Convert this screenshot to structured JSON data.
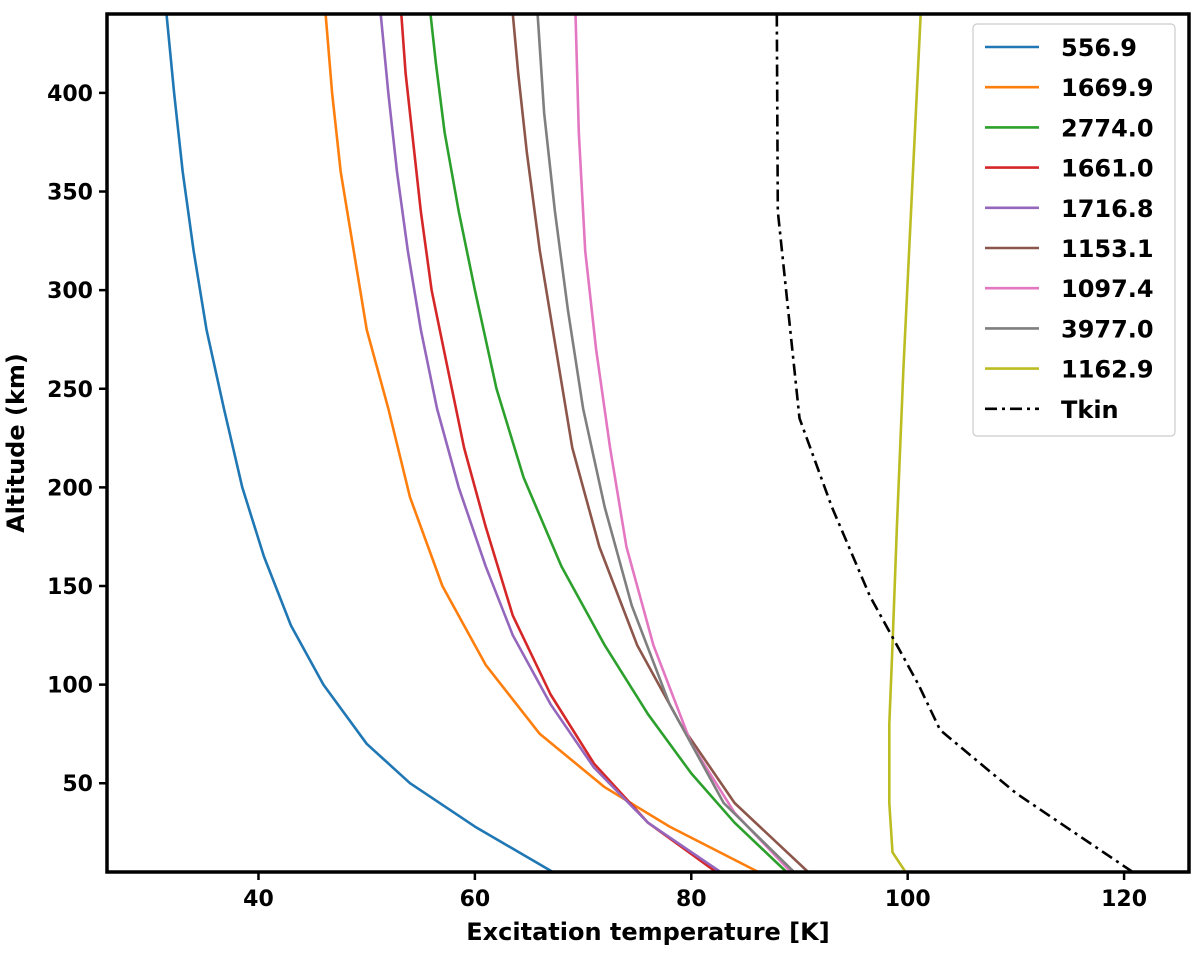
{
  "chart_data": {
    "type": "line",
    "title": "",
    "xlabel": "Excitation temperature [K]",
    "ylabel": "Altitude (km)",
    "xlim": [
      26,
      126
    ],
    "ylim": [
      5,
      440
    ],
    "xticks": [
      40,
      60,
      80,
      100,
      120
    ],
    "yticks": [
      50,
      100,
      150,
      200,
      250,
      300,
      350,
      400
    ],
    "grid": false,
    "legend_position": "top-right",
    "series": [
      {
        "name": "556.9",
        "color": "#1f77b4",
        "dash": "solid",
        "points": [
          [
            67.2,
            5
          ],
          [
            60,
            28
          ],
          [
            54,
            50
          ],
          [
            50,
            70
          ],
          [
            46,
            100
          ],
          [
            43,
            130
          ],
          [
            40.5,
            165
          ],
          [
            38.5,
            200
          ],
          [
            36.8,
            240
          ],
          [
            35.2,
            280
          ],
          [
            34,
            320
          ],
          [
            33,
            360
          ],
          [
            32.2,
            400
          ],
          [
            31.5,
            440
          ]
        ]
      },
      {
        "name": "1669.9",
        "color": "#ff7f0e",
        "dash": "solid",
        "points": [
          [
            86.2,
            5
          ],
          [
            78,
            28
          ],
          [
            72,
            48
          ],
          [
            66,
            75
          ],
          [
            61,
            110
          ],
          [
            57,
            150
          ],
          [
            54,
            195
          ],
          [
            52,
            240
          ],
          [
            50,
            280
          ],
          [
            48.8,
            320
          ],
          [
            47.6,
            360
          ],
          [
            46.8,
            400
          ],
          [
            46.2,
            440
          ]
        ]
      },
      {
        "name": "2774.0",
        "color": "#2ca02c",
        "dash": "solid",
        "points": [
          [
            88.8,
            5
          ],
          [
            84,
            30
          ],
          [
            80,
            55
          ],
          [
            76,
            85
          ],
          [
            72,
            120
          ],
          [
            68,
            160
          ],
          [
            64.5,
            205
          ],
          [
            62,
            250
          ],
          [
            60,
            300
          ],
          [
            58.5,
            340
          ],
          [
            57.2,
            380
          ],
          [
            56.4,
            415
          ],
          [
            55.9,
            440
          ]
        ]
      },
      {
        "name": "1661.0",
        "color": "#d62728",
        "dash": "solid",
        "points": [
          [
            82.3,
            5
          ],
          [
            76,
            30
          ],
          [
            71,
            60
          ],
          [
            67,
            95
          ],
          [
            63.5,
            135
          ],
          [
            61,
            180
          ],
          [
            59,
            220
          ],
          [
            57.5,
            260
          ],
          [
            56,
            300
          ],
          [
            55,
            340
          ],
          [
            54.2,
            380
          ],
          [
            53.6,
            410
          ],
          [
            53.2,
            440
          ]
        ]
      },
      {
        "name": "1716.8",
        "color": "#9467bd",
        "dash": "solid",
        "points": [
          [
            82.7,
            5
          ],
          [
            76,
            30
          ],
          [
            71,
            58
          ],
          [
            67,
            90
          ],
          [
            63.5,
            125
          ],
          [
            61,
            160
          ],
          [
            58.5,
            200
          ],
          [
            56.5,
            240
          ],
          [
            55,
            280
          ],
          [
            53.8,
            320
          ],
          [
            52.8,
            360
          ],
          [
            52,
            400
          ],
          [
            51.3,
            440
          ]
        ]
      },
      {
        "name": "1153.1",
        "color": "#8c564b",
        "dash": "solid",
        "points": [
          [
            90.8,
            5
          ],
          [
            84,
            40
          ],
          [
            79,
            80
          ],
          [
            75,
            120
          ],
          [
            71.5,
            170
          ],
          [
            69,
            220
          ],
          [
            67.5,
            270
          ],
          [
            66,
            320
          ],
          [
            64.8,
            370
          ],
          [
            64,
            410
          ],
          [
            63.5,
            440
          ]
        ]
      },
      {
        "name": "1097.4",
        "color": "#e377c2",
        "dash": "solid",
        "points": [
          [
            89.2,
            5
          ],
          [
            84,
            35
          ],
          [
            80,
            70
          ],
          [
            76.5,
            120
          ],
          [
            74,
            170
          ],
          [
            72.5,
            220
          ],
          [
            71.2,
            270
          ],
          [
            70.2,
            320
          ],
          [
            69.6,
            380
          ],
          [
            69.3,
            440
          ]
        ]
      },
      {
        "name": "3977.0",
        "color": "#7f7f7f",
        "dash": "solid",
        "points": [
          [
            89.5,
            5
          ],
          [
            83,
            40
          ],
          [
            78,
            90
          ],
          [
            74.5,
            140
          ],
          [
            72,
            190
          ],
          [
            70,
            240
          ],
          [
            68.6,
            290
          ],
          [
            67.4,
            340
          ],
          [
            66.4,
            390
          ],
          [
            65.8,
            440
          ]
        ]
      },
      {
        "name": "1162.9",
        "color": "#bcbd22",
        "dash": "solid",
        "points": [
          [
            99.8,
            5
          ],
          [
            98.6,
            15
          ],
          [
            98.3,
            40
          ],
          [
            98.3,
            80
          ],
          [
            98.6,
            120
          ],
          [
            99,
            180
          ],
          [
            99.6,
            260
          ],
          [
            100.4,
            350
          ],
          [
            101.2,
            440
          ]
        ]
      },
      {
        "name": "Tkin",
        "color": "#000000",
        "dash": "dashdot",
        "points": [
          [
            120.8,
            5
          ],
          [
            110,
            45
          ],
          [
            103,
            77
          ],
          [
            101,
            100
          ],
          [
            96.5,
            145
          ],
          [
            93,
            190
          ],
          [
            90,
            235
          ],
          [
            88,
            340
          ],
          [
            87.9,
            440
          ]
        ]
      }
    ]
  }
}
